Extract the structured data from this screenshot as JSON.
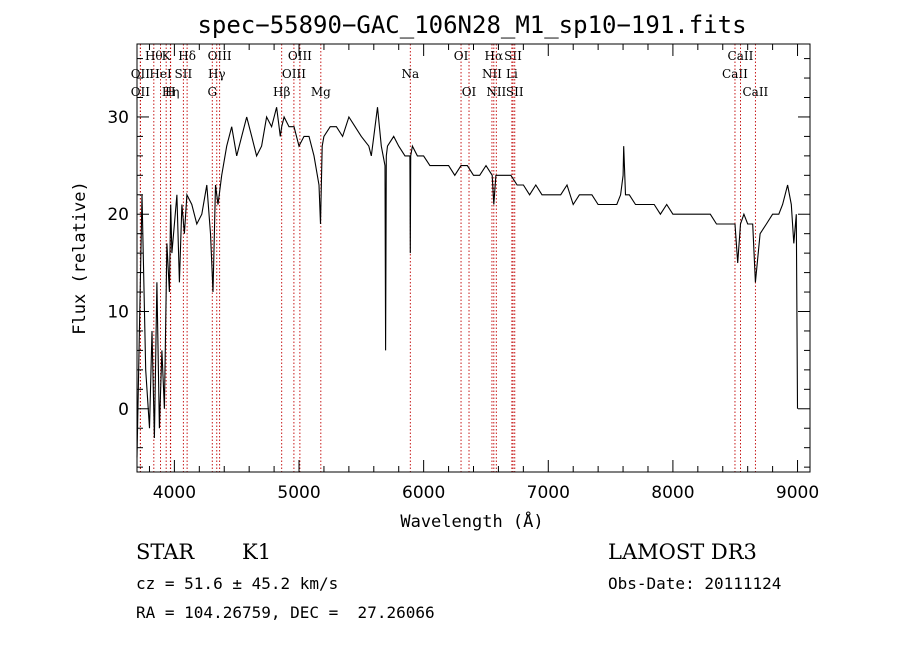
{
  "chart_data": {
    "type": "line",
    "title": "spec−55890−GAC_106N28_M1_sp10−191.fits",
    "xlabel": "Wavelength (Å)",
    "ylabel": "Flux (relative)",
    "xlim": [
      3700,
      9100
    ],
    "ylim": [
      -6.5,
      37.5
    ],
    "x_ticks": [
      4000,
      5000,
      6000,
      7000,
      8000,
      9000
    ],
    "y_ticks": [
      0,
      10,
      20,
      30
    ],
    "series": [
      {
        "name": "flux",
        "x": [
          3700,
          3740,
          3770,
          3800,
          3820,
          3840,
          3860,
          3880,
          3900,
          3920,
          3940,
          3960,
          3970,
          3980,
          4000,
          4020,
          4040,
          4060,
          4080,
          4100,
          4140,
          4180,
          4220,
          4260,
          4290,
          4310,
          4330,
          4350,
          4380,
          4420,
          4460,
          4500,
          4540,
          4580,
          4620,
          4660,
          4700,
          4740,
          4780,
          4820,
          4850,
          4861,
          4880,
          4920,
          4960,
          5000,
          5040,
          5080,
          5120,
          5160,
          5172,
          5186,
          5200,
          5250,
          5300,
          5350,
          5400,
          5450,
          5500,
          5560,
          5580,
          5600,
          5630,
          5660,
          5690,
          5695,
          5700,
          5710,
          5760,
          5800,
          5850,
          5890,
          5893,
          5896,
          5910,
          5950,
          6000,
          6050,
          6100,
          6150,
          6200,
          6250,
          6300,
          6350,
          6400,
          6450,
          6500,
          6550,
          6563,
          6580,
          6600,
          6650,
          6700,
          6750,
          6800,
          6850,
          6900,
          6950,
          7000,
          7050,
          7100,
          7150,
          7200,
          7250,
          7300,
          7350,
          7400,
          7450,
          7500,
          7550,
          7580,
          7600,
          7605,
          7620,
          7650,
          7700,
          7750,
          7800,
          7850,
          7900,
          7950,
          8000,
          8050,
          8100,
          8150,
          8200,
          8250,
          8300,
          8350,
          8400,
          8450,
          8498,
          8520,
          8542,
          8570,
          8600,
          8640,
          8662,
          8700,
          8750,
          8800,
          8850,
          8880,
          8900,
          8920,
          8950,
          8970,
          8990,
          9000
        ],
        "y": [
          -5,
          22,
          4,
          -2,
          8,
          -3,
          13,
          -2,
          6,
          0,
          17,
          12,
          21,
          16,
          19,
          22,
          13,
          21,
          18,
          22,
          21,
          19,
          20,
          23,
          18,
          12,
          23,
          21,
          24,
          27,
          29,
          26,
          28,
          30,
          28,
          26,
          27,
          30,
          29,
          31,
          28,
          29,
          30,
          29,
          29,
          27,
          28,
          28,
          26,
          23,
          19,
          27,
          28,
          29,
          29,
          28,
          30,
          29,
          28,
          27,
          26,
          28,
          31,
          27,
          25,
          6,
          26,
          27,
          28,
          27,
          26,
          26,
          16,
          26,
          27,
          26,
          26,
          25,
          25,
          25,
          25,
          24,
          25,
          25,
          24,
          24,
          25,
          24,
          21,
          24,
          24,
          24,
          24,
          23,
          23,
          22,
          23,
          22,
          22,
          22,
          22,
          23,
          21,
          22,
          22,
          22,
          21,
          21,
          21,
          21,
          22,
          24,
          27,
          22,
          22,
          21,
          21,
          21,
          21,
          20,
          21,
          20,
          20,
          20,
          20,
          20,
          20,
          20,
          19,
          19,
          19,
          19,
          15,
          19,
          20,
          19,
          19,
          13,
          18,
          19,
          20,
          20,
          21,
          22,
          23,
          21,
          17,
          20,
          0
        ]
      }
    ],
    "spectral_lines": [
      {
        "wl": 3835,
        "label": "Hθ",
        "row": 1
      },
      {
        "wl": 3727,
        "label": "OII",
        "row": 2
      },
      {
        "wl": 3727,
        "label": "OII",
        "row": 3
      },
      {
        "wl": 3889,
        "label": "HeI",
        "row": 2
      },
      {
        "wl": 3934,
        "label": "K",
        "row": 1
      },
      {
        "wl": 3970,
        "label": "Hη",
        "row": 3
      },
      {
        "wl": 3968,
        "label": "H",
        "row": 3
      },
      {
        "wl": 4072,
        "label": "SII",
        "row": 2
      },
      {
        "wl": 4102,
        "label": "Hδ",
        "row": 1
      },
      {
        "wl": 4340,
        "label": "Hγ",
        "row": 2
      },
      {
        "wl": 4304,
        "label": "G",
        "row": 3
      },
      {
        "wl": 4363,
        "label": "OIII",
        "row": 1
      },
      {
        "wl": 4861,
        "label": "Hβ",
        "row": 3
      },
      {
        "wl": 4959,
        "label": "OIII",
        "row": 2
      },
      {
        "wl": 5007,
        "label": "OIII",
        "row": 1
      },
      {
        "wl": 5175,
        "label": "Mg",
        "row": 3
      },
      {
        "wl": 5893,
        "label": "Na",
        "row": 2
      },
      {
        "wl": 6300,
        "label": "OI",
        "row": 1
      },
      {
        "wl": 6364,
        "label": "OI",
        "row": 3
      },
      {
        "wl": 6548,
        "label": "NII",
        "row": 2
      },
      {
        "wl": 6563,
        "label": "Hα",
        "row": 1
      },
      {
        "wl": 6583,
        "label": "NII",
        "row": 3
      },
      {
        "wl": 6708,
        "label": "Li",
        "row": 2
      },
      {
        "wl": 6717,
        "label": "SII",
        "row": 1
      },
      {
        "wl": 6731,
        "label": "SII",
        "row": 3
      },
      {
        "wl": 8498,
        "label": "CaII",
        "row": 2
      },
      {
        "wl": 8542,
        "label": "CaII",
        "row": 1
      },
      {
        "wl": 8662,
        "label": "CaII",
        "row": 3
      }
    ]
  },
  "info": {
    "class_label": "STAR",
    "subclass_label": "K1",
    "survey_label": "LAMOST DR3",
    "cz_line": "cz = 51.6 ± 45.2 km/s",
    "obs_date_line": "Obs-Date: 20111124",
    "radec_line": "RA = 104.26759, DEC =  27.26066"
  }
}
